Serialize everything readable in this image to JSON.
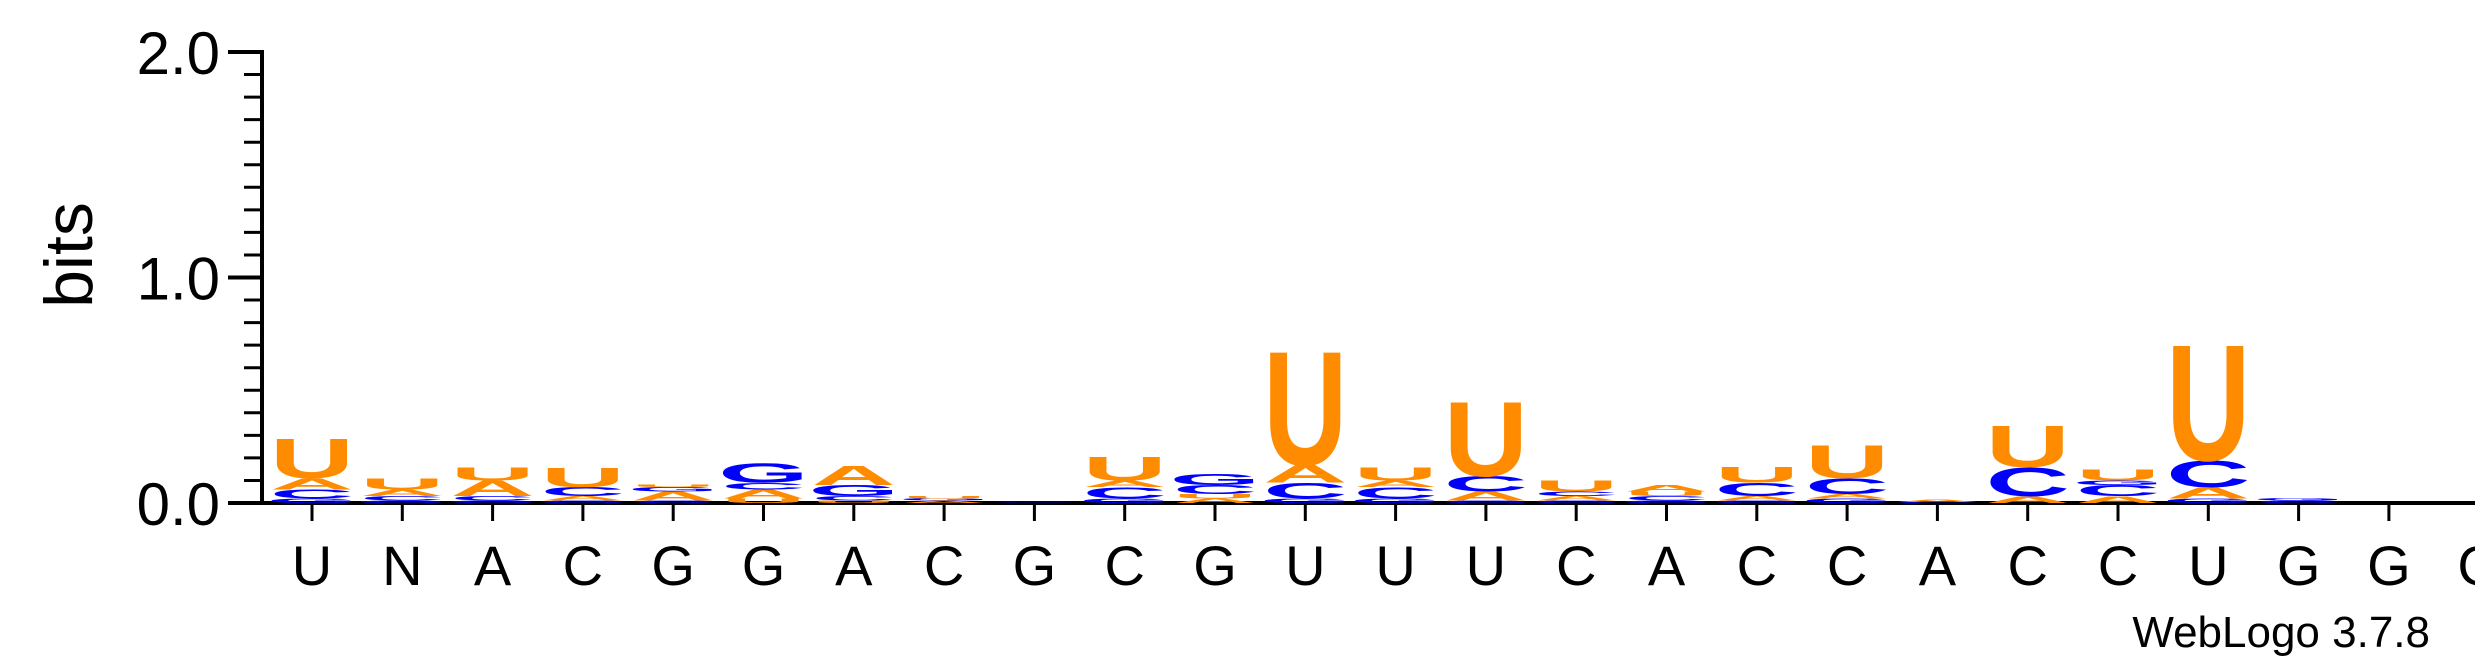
{
  "chart_data": {
    "type": "sequence-logo",
    "ylabel": "bits",
    "ylim": [
      0,
      2.0
    ],
    "yticks": [
      "0.0",
      "1.0",
      "2.0"
    ],
    "y_minor_step": 0.1,
    "footer": "WebLogo 3.7.8",
    "colors": {
      "A": "#ff8c00",
      "U": "#ff8c00",
      "C": "#0000ff",
      "G": "#0000ff"
    },
    "positions": [
      {
        "label": "U",
        "stack": [
          [
            "G",
            0.02
          ],
          [
            "C",
            0.04
          ],
          [
            "A",
            0.05
          ],
          [
            "U",
            0.18
          ]
        ]
      },
      {
        "label": "N",
        "stack": [
          [
            "G",
            0.01
          ],
          [
            "C",
            0.02
          ],
          [
            "A",
            0.03
          ],
          [
            "U",
            0.05
          ]
        ]
      },
      {
        "label": "A",
        "stack": [
          [
            "G",
            0.01
          ],
          [
            "C",
            0.02
          ],
          [
            "A",
            0.07
          ],
          [
            "U",
            0.06
          ]
        ]
      },
      {
        "label": "C",
        "stack": [
          [
            "G",
            0.01
          ],
          [
            "A",
            0.02
          ],
          [
            "C",
            0.04
          ],
          [
            "U",
            0.09
          ]
        ]
      },
      {
        "label": "G",
        "stack": [
          [
            "C",
            0.01
          ],
          [
            "A",
            0.04
          ],
          [
            "G",
            0.02
          ],
          [
            "U",
            0.01
          ]
        ]
      },
      {
        "label": "G",
        "stack": [
          [
            "U",
            0.02
          ],
          [
            "A",
            0.04
          ],
          [
            "C",
            0.03
          ],
          [
            "G",
            0.09
          ]
        ]
      },
      {
        "label": "A",
        "stack": [
          [
            "U",
            0.01
          ],
          [
            "C",
            0.02
          ],
          [
            "G",
            0.05
          ],
          [
            "A",
            0.09
          ]
        ]
      },
      {
        "label": "C",
        "stack": [
          [
            "A",
            0.01
          ],
          [
            "G",
            0.01
          ],
          [
            "U",
            0.01
          ]
        ]
      },
      {
        "label": "G",
        "stack": [
          [
            "C",
            0.004
          ],
          [
            "G",
            0.004
          ]
        ]
      },
      {
        "label": "C",
        "stack": [
          [
            "G",
            0.02
          ],
          [
            "C",
            0.05
          ],
          [
            "A",
            0.03
          ],
          [
            "U",
            0.11
          ]
        ]
      },
      {
        "label": "G",
        "stack": [
          [
            "A",
            0.02
          ],
          [
            "U",
            0.02
          ],
          [
            "C",
            0.04
          ],
          [
            "G",
            0.05
          ]
        ]
      },
      {
        "label": "U",
        "stack": [
          [
            "G",
            0.02
          ],
          [
            "C",
            0.07
          ],
          [
            "A",
            0.08
          ],
          [
            "U",
            0.52
          ]
        ]
      },
      {
        "label": "U",
        "stack": [
          [
            "G",
            0.02
          ],
          [
            "C",
            0.05
          ],
          [
            "A",
            0.03
          ],
          [
            "U",
            0.06
          ]
        ]
      },
      {
        "label": "U",
        "stack": [
          [
            "G",
            0.01
          ],
          [
            "A",
            0.04
          ],
          [
            "C",
            0.07
          ],
          [
            "U",
            0.34
          ]
        ]
      },
      {
        "label": "C",
        "stack": [
          [
            "G",
            0.01
          ],
          [
            "A",
            0.02
          ],
          [
            "C",
            0.02
          ],
          [
            "U",
            0.05
          ]
        ]
      },
      {
        "label": "A",
        "stack": [
          [
            "G",
            0.01
          ],
          [
            "C",
            0.02
          ],
          [
            "U",
            0.02
          ],
          [
            "A",
            0.03
          ]
        ]
      },
      {
        "label": "C",
        "stack": [
          [
            "G",
            0.01
          ],
          [
            "A",
            0.02
          ],
          [
            "C",
            0.06
          ],
          [
            "U",
            0.07
          ]
        ]
      },
      {
        "label": "C",
        "stack": [
          [
            "G",
            0.02
          ],
          [
            "A",
            0.02
          ],
          [
            "C",
            0.07
          ],
          [
            "U",
            0.15
          ]
        ]
      },
      {
        "label": "A",
        "stack": [
          [
            "C",
            0.005
          ],
          [
            "A",
            0.01
          ]
        ]
      },
      {
        "label": "C",
        "stack": [
          [
            "A",
            0.03
          ],
          [
            "C",
            0.13
          ],
          [
            "U",
            0.19
          ]
        ]
      },
      {
        "label": "C",
        "stack": [
          [
            "A",
            0.03
          ],
          [
            "C",
            0.05
          ],
          [
            "G",
            0.02
          ],
          [
            "U",
            0.05
          ]
        ]
      },
      {
        "label": "U",
        "stack": [
          [
            "G",
            0.02
          ],
          [
            "A",
            0.05
          ],
          [
            "C",
            0.12
          ],
          [
            "U",
            0.53
          ]
        ]
      },
      {
        "label": "G",
        "stack": [
          [
            "C",
            0.01
          ],
          [
            "G",
            0.01
          ]
        ]
      },
      {
        "label": "G",
        "stack": []
      },
      {
        "label": "G",
        "stack": []
      }
    ]
  }
}
